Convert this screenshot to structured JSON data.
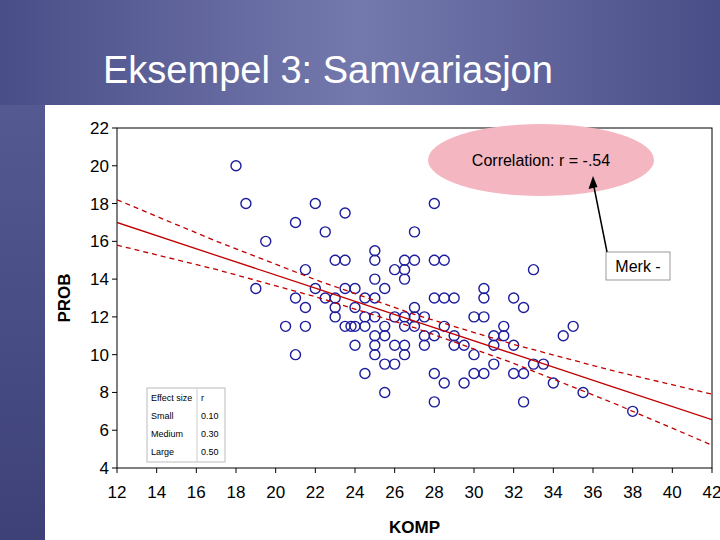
{
  "chart_data": {
    "type": "scatter",
    "title": "Eksempel 3: Samvariasjon",
    "x_label": "KOMP",
    "y_label": "PROB",
    "xlim": [
      12,
      42
    ],
    "ylim": [
      4,
      22
    ],
    "xticks": [
      12,
      14,
      16,
      18,
      20,
      22,
      24,
      26,
      28,
      30,
      32,
      34,
      36,
      38,
      40,
      42
    ],
    "yticks": [
      4,
      6,
      8,
      10,
      12,
      14,
      16,
      18,
      20,
      22
    ],
    "annotations": [
      "Correlation: r = -.54",
      "Merk -"
    ],
    "effect_size": {
      "header": [
        "Effect size",
        "r"
      ],
      "rows": [
        [
          "Small",
          "0.10"
        ],
        [
          "Medium",
          "0.30"
        ],
        [
          "Large",
          "0.50"
        ]
      ]
    },
    "series": [
      {
        "type": "scatter",
        "color": "#1c1c9c",
        "marker": "circle",
        "x": [
          18,
          18.5,
          19.5,
          19,
          21,
          22,
          22.5,
          23.5,
          21.5,
          20.5,
          21,
          21,
          21.5,
          21.5,
          22,
          22.5,
          23,
          23,
          23,
          23.5,
          23.5,
          23,
          23.5,
          23.8,
          24,
          24,
          24,
          24,
          24.5,
          24.5,
          24.5,
          24.5,
          25,
          25,
          25,
          25,
          25,
          25,
          25,
          25,
          25.5,
          25.5,
          25.5,
          25.5,
          26,
          26,
          26,
          26,
          25.5,
          26.5,
          26.5,
          26.5,
          26.5,
          26.5,
          26.5,
          26.5,
          27,
          27,
          27,
          27,
          27,
          27.5,
          27.5,
          27.5,
          28,
          28,
          28,
          28,
          28,
          28,
          28.5,
          28.5,
          28.5,
          28.5,
          29,
          29,
          29,
          29.5,
          29.5,
          30,
          30,
          30,
          30.5,
          30.5,
          30.5,
          30.5,
          31,
          31,
          31,
          31.5,
          31.5,
          32,
          32,
          32,
          32.5,
          32.5,
          32.5,
          33,
          33,
          33.5,
          34,
          34.5,
          35,
          35.5,
          38
        ],
        "values": [
          20,
          18,
          16,
          13.5,
          17,
          18,
          16.5,
          17.5,
          14.5,
          11.5,
          13,
          10,
          12.5,
          11.5,
          13.5,
          13,
          15,
          13,
          12.5,
          15,
          13.5,
          12,
          11.5,
          11.5,
          13.5,
          12.5,
          11.5,
          10.5,
          13,
          12,
          11.5,
          9,
          15.5,
          15,
          14,
          13,
          12,
          11,
          10.5,
          10,
          13.5,
          11.5,
          11,
          9.5,
          14.5,
          12,
          10.5,
          9.5,
          8,
          15,
          14.5,
          14,
          12,
          11.5,
          10.5,
          10,
          16.5,
          15,
          12.5,
          12,
          11.5,
          12,
          11,
          10.5,
          18,
          15,
          13,
          11,
          9,
          7.5,
          15,
          13,
          11.5,
          8.5,
          13,
          11,
          10.5,
          10.5,
          8.5,
          12,
          10,
          9,
          13.5,
          13,
          12,
          9,
          11,
          10.5,
          9.5,
          11.5,
          11,
          13,
          10.5,
          9,
          9,
          7.5,
          12.5,
          14.5,
          9.5,
          9.5,
          8.5,
          11,
          11.5,
          8,
          7
        ]
      },
      {
        "type": "line",
        "color": "#c00000",
        "line_style": "solid",
        "x": [
          12,
          17,
          22,
          27,
          32,
          37,
          42
        ],
        "values": [
          17.0,
          15.26,
          13.52,
          11.78,
          10.04,
          8.3,
          6.56
        ]
      },
      {
        "type": "line",
        "color": "#c00000",
        "line_style": "dashed",
        "x": [
          12,
          17,
          22,
          27,
          32,
          37,
          42
        ],
        "values": [
          18.2,
          16.01,
          13.97,
          12.13,
          10.54,
          9.15,
          7.91
        ]
      },
      {
        "type": "line",
        "color": "#c00000",
        "line_style": "dashed",
        "x": [
          12,
          17,
          22,
          27,
          32,
          37,
          42
        ],
        "values": [
          15.8,
          14.51,
          13.07,
          11.43,
          9.54,
          7.45,
          5.21
        ]
      }
    ]
  }
}
